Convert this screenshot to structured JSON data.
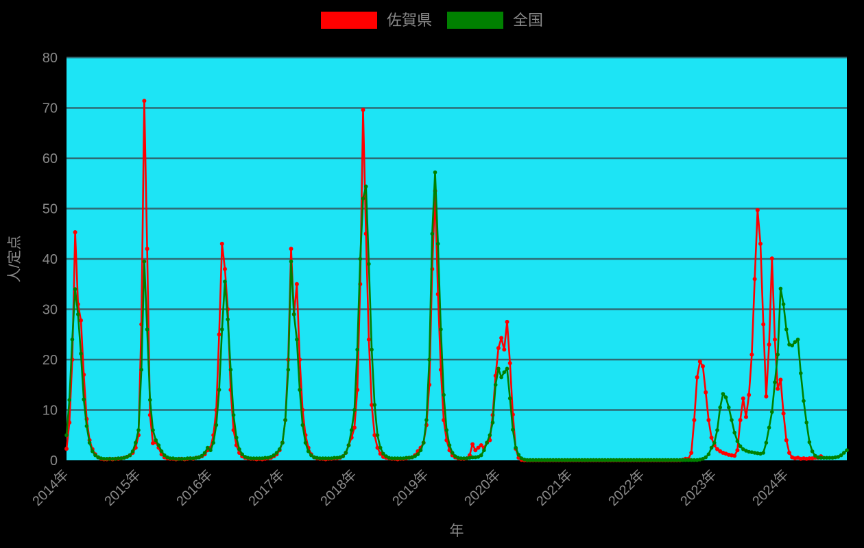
{
  "legend": {
    "items": [
      {
        "label": "佐賀県",
        "color": "#ff0000"
      },
      {
        "label": "全国",
        "color": "#008000"
      }
    ]
  },
  "chart_data": {
    "type": "line",
    "title": "",
    "xlabel": "年",
    "ylabel": "人/定点",
    "ylim": [
      0,
      80
    ],
    "yticks": [
      0,
      10,
      20,
      30,
      40,
      50,
      60,
      70,
      80
    ],
    "xlim": [
      2014.0,
      2024.84
    ],
    "xticks": [
      2014,
      2015,
      2016,
      2017,
      2018,
      2019,
      2020,
      2021,
      2022,
      2023,
      2024
    ],
    "xtick_labels": [
      "2014年",
      "2015年",
      "2016年",
      "2017年",
      "2018年",
      "2019年",
      "2020年",
      "2021年",
      "2022年",
      "2023年",
      "2024年"
    ],
    "grid": true,
    "legend_position": "top-center",
    "plot_bg": "#1de4f5",
    "grid_color": "#2e6a74",
    "text_color": "#8a8a8a",
    "background": "#000000",
    "x_start": 2014.0,
    "x_step": 0.04,
    "series": [
      {
        "name": "佐賀県",
        "color": "#ff0000",
        "values": [
          2.3,
          7.5,
          20,
          45.3,
          31,
          27.8,
          17,
          8.2,
          4,
          2.2,
          1.2,
          0.6,
          0.3,
          0.2,
          0.2,
          0.3,
          0.2,
          0.3,
          0.3,
          0.4,
          0.5,
          0.7,
          1,
          1.5,
          2.5,
          5,
          27,
          71.4,
          42,
          9,
          3.4,
          3.6,
          2.5,
          1.2,
          0.6,
          0.4,
          0.3,
          0.3,
          0.2,
          0.3,
          0.3,
          0.2,
          0.3,
          0.4,
          0.3,
          0.5,
          0.6,
          0.8,
          1.2,
          2,
          2.5,
          5,
          10,
          25,
          43,
          38,
          30,
          14,
          6,
          3,
          1.5,
          0.8,
          0.5,
          0.4,
          0.3,
          0.3,
          0.2,
          0.3,
          0.2,
          0.3,
          0.4,
          0.5,
          0.8,
          1.2,
          2,
          3.5,
          8,
          20,
          42,
          29,
          35,
          20,
          10,
          5,
          2.5,
          1.2,
          0.6,
          0.4,
          0.3,
          0.3,
          0.2,
          0.3,
          0.3,
          0.4,
          0.4,
          0.5,
          0.8,
          1.5,
          3,
          4.5,
          6.5,
          14,
          35,
          69.6,
          45,
          24,
          11,
          5,
          2.5,
          1.3,
          0.7,
          0.5,
          0.4,
          0.3,
          0.3,
          0.2,
          0.3,
          0.3,
          0.4,
          0.5,
          0.6,
          1,
          1.8,
          2.5,
          3.5,
          7,
          15,
          38,
          53.5,
          33,
          18,
          8,
          4,
          2,
          1,
          0.6,
          0.4,
          0.3,
          0.3,
          0.4,
          1,
          3.2,
          2,
          2.5,
          3,
          2.5,
          3.5,
          4,
          9,
          16.8,
          22.3,
          24.3,
          22,
          27.5,
          19.3,
          9.1,
          2.3,
          0.5,
          0.1,
          0.02,
          0.02,
          0.02,
          0.02,
          0.02,
          0.02,
          0.02,
          0.02,
          0.02,
          0.02,
          0.02,
          0.02,
          0.02,
          0.02,
          0.02,
          0.02,
          0.02,
          0.02,
          0.02,
          0.02,
          0.02,
          0.02,
          0.02,
          0.02,
          0.02,
          0.02,
          0.02,
          0.02,
          0.02,
          0.02,
          0.02,
          0.02,
          0.02,
          0.02,
          0.02,
          0.02,
          0.02,
          0.02,
          0.02,
          0.02,
          0.02,
          0.02,
          0.02,
          0.02,
          0.02,
          0.02,
          0.02,
          0.02,
          0.02,
          0.02,
          0.02,
          0.02,
          0.02,
          0.02,
          0.02,
          0.1,
          0.3,
          0.3,
          1.5,
          8,
          16.5,
          19.6,
          18.7,
          13.5,
          8,
          4.5,
          3,
          2.2,
          1.8,
          1.5,
          1.3,
          1.1,
          1,
          0.9,
          2,
          8,
          12.3,
          8.6,
          13,
          21,
          36,
          49.7,
          43,
          27,
          12.7,
          23,
          40.1,
          24,
          14.2,
          16,
          9.3,
          4,
          1.5,
          0.6,
          0.4,
          0.5,
          0.3,
          0.4,
          0.3,
          0.4,
          0.4,
          0.5,
          0.5,
          0.8
        ]
      },
      {
        "name": "全国",
        "color": "#008000",
        "values": [
          5,
          12,
          24,
          34,
          29,
          21.2,
          12.1,
          6.8,
          3.5,
          1.8,
          1,
          0.6,
          0.4,
          0.3,
          0.3,
          0.3,
          0.3,
          0.3,
          0.4,
          0.4,
          0.5,
          0.7,
          1,
          1.8,
          3.5,
          6,
          18,
          39.5,
          26,
          12,
          6,
          4,
          3,
          1.8,
          1,
          0.6,
          0.4,
          0.4,
          0.3,
          0.3,
          0.3,
          0.3,
          0.4,
          0.4,
          0.4,
          0.5,
          0.6,
          0.9,
          1.5,
          2.5,
          2,
          3.5,
          7,
          14,
          26,
          35.5,
          28,
          18,
          9,
          4.5,
          2.2,
          1.2,
          0.7,
          0.5,
          0.4,
          0.4,
          0.4,
          0.4,
          0.4,
          0.5,
          0.5,
          0.7,
          1,
          1.5,
          2.2,
          3.5,
          8,
          18,
          39.5,
          29,
          24,
          14,
          7,
          3.5,
          1.8,
          1,
          0.6,
          0.5,
          0.4,
          0.4,
          0.4,
          0.4,
          0.4,
          0.5,
          0.5,
          0.6,
          0.8,
          1.5,
          3,
          6,
          10,
          22,
          40,
          52,
          54.4,
          39,
          22,
          11,
          5,
          2.5,
          1.3,
          0.8,
          0.5,
          0.4,
          0.4,
          0.4,
          0.4,
          0.4,
          0.5,
          0.5,
          0.6,
          0.8,
          1.2,
          2,
          3.5,
          8,
          20,
          45,
          57.2,
          43,
          26,
          13,
          6,
          3,
          1.5,
          0.8,
          0.5,
          0.4,
          0.4,
          0.4,
          0.5,
          0.6,
          0.6,
          0.7,
          1,
          2,
          3.5,
          5,
          7.5,
          15,
          18.2,
          16.5,
          17.5,
          18.2,
          12.3,
          6.1,
          2.5,
          1.1,
          0.4,
          0.15,
          0.05,
          0.05,
          0.05,
          0.05,
          0.05,
          0.05,
          0.05,
          0.05,
          0.05,
          0.05,
          0.05,
          0.05,
          0.05,
          0.05,
          0.05,
          0.05,
          0.05,
          0.05,
          0.05,
          0.05,
          0.05,
          0.05,
          0.05,
          0.05,
          0.05,
          0.05,
          0.05,
          0.05,
          0.05,
          0.05,
          0.05,
          0.05,
          0.05,
          0.05,
          0.05,
          0.05,
          0.05,
          0.05,
          0.05,
          0.05,
          0.05,
          0.05,
          0.05,
          0.05,
          0.05,
          0.05,
          0.05,
          0.05,
          0.05,
          0.05,
          0.05,
          0.05,
          0.05,
          0.05,
          0.05,
          0.05,
          0.05,
          0.05,
          0.05,
          0.05,
          0.15,
          0.3,
          0.6,
          1.2,
          2.5,
          3.5,
          6,
          10.5,
          13.2,
          12.5,
          10.5,
          8,
          5.5,
          3.8,
          2.8,
          2.2,
          1.9,
          1.7,
          1.6,
          1.5,
          1.4,
          1.3,
          1.5,
          3.5,
          6.5,
          9.6,
          15.5,
          21,
          34.1,
          31,
          26,
          23,
          22.8,
          23.5,
          24,
          17.3,
          11.8,
          7.5,
          3.6,
          1.8,
          0.9,
          0.6,
          0.5,
          0.5,
          0.5,
          0.5,
          0.5,
          0.6,
          0.7,
          1,
          1.5,
          2
        ]
      }
    ]
  }
}
